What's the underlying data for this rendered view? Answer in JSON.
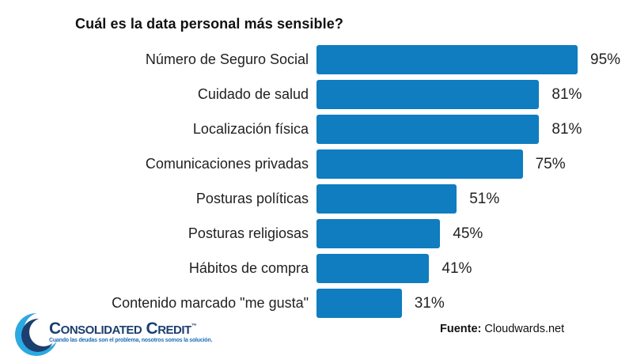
{
  "chart_data": {
    "type": "bar",
    "orientation": "horizontal",
    "title": "Cuál es la data personal más sensible?",
    "categories": [
      "Número de Seguro Social",
      "Cuidado de salud",
      "Localización física",
      "Comunicaciones privadas",
      "Posturas políticas",
      "Posturas religiosas",
      "Hábitos de compra",
      "Contenido marcado \"me gusta\""
    ],
    "values": [
      95,
      81,
      81,
      75,
      51,
      45,
      41,
      31
    ],
    "value_labels": [
      "95%",
      "81%",
      "81%",
      "75%",
      "51%",
      "45%",
      "41%",
      "31%"
    ],
    "xlim": [
      0,
      100
    ],
    "bar_color": "#0f7dbf",
    "grid": false,
    "legend": false
  },
  "source": {
    "label": "Fuente:",
    "value": " Cloudwards.net"
  },
  "logo": {
    "wordmark": "Consolidated Credit",
    "trademark": "™",
    "tagline": "Cuando las deudas son el problema, nosotros somos la solución.",
    "colors": {
      "navy": "#1c3f70",
      "light_blue": "#2ba9e1",
      "tagline_blue": "#1c6fb8"
    }
  }
}
